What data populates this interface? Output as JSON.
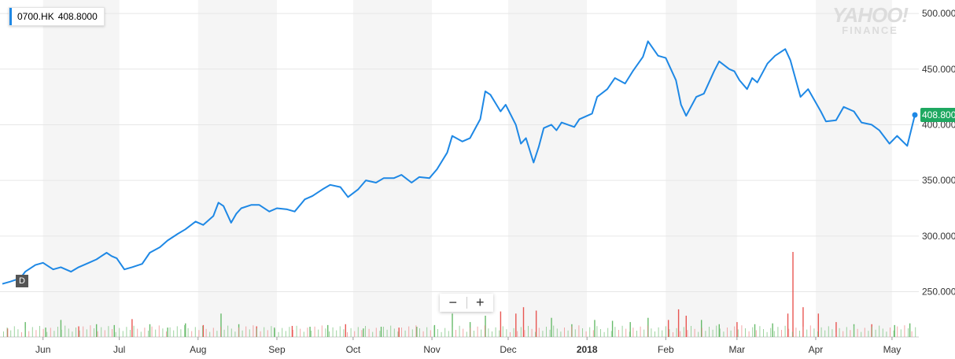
{
  "legend": {
    "symbol": "0700.HK",
    "value": "408.8000"
  },
  "period_badge": "D",
  "zoom": {
    "minus": "−",
    "plus": "+"
  },
  "watermark": {
    "line1": "YAHOO!",
    "line2": "FINANCE"
  },
  "colors": {
    "line": "#1e88e5",
    "up_volume": "#4caf50",
    "down_volume": "#e53935",
    "last_price_tag": "#1ea861"
  },
  "chart_data": {
    "type": "line",
    "title": "",
    "xlabel": "",
    "ylabel": "",
    "ylim": [
      215,
      505
    ],
    "yticks": [
      250,
      300,
      350,
      400,
      450,
      500
    ],
    "ytick_labels": [
      "250.000",
      "300.000",
      "350.000",
      "400.000",
      "450.000",
      "500.000"
    ],
    "last_price_label": "408.800",
    "x_range": [
      "2017-05-16",
      "2018-05-10"
    ],
    "xticks": [
      {
        "date": "2017-06-01",
        "label": "Jun",
        "bold": false
      },
      {
        "date": "2017-07-01",
        "label": "Jul",
        "bold": false
      },
      {
        "date": "2017-08-01",
        "label": "Aug",
        "bold": false
      },
      {
        "date": "2017-09-01",
        "label": "Sep",
        "bold": false
      },
      {
        "date": "2017-10-01",
        "label": "Oct",
        "bold": false
      },
      {
        "date": "2017-11-01",
        "label": "Nov",
        "bold": false
      },
      {
        "date": "2017-12-01",
        "label": "Dec",
        "bold": false
      },
      {
        "date": "2018-01-01",
        "label": "2018",
        "bold": true
      },
      {
        "date": "2018-02-01",
        "label": "Feb",
        "bold": false
      },
      {
        "date": "2018-03-01",
        "label": "Mar",
        "bold": false
      },
      {
        "date": "2018-04-01",
        "label": "Apr",
        "bold": false
      },
      {
        "date": "2018-05-01",
        "label": "May",
        "bold": false
      }
    ],
    "series": [
      {
        "points": [
          [
            "2017-05-16",
            257
          ],
          [
            "2017-05-19",
            259
          ],
          [
            "2017-05-23",
            262
          ],
          [
            "2017-05-25",
            268
          ],
          [
            "2017-05-29",
            274
          ],
          [
            "2017-06-01",
            276
          ],
          [
            "2017-06-05",
            270
          ],
          [
            "2017-06-08",
            272
          ],
          [
            "2017-06-12",
            268
          ],
          [
            "2017-06-15",
            272
          ],
          [
            "2017-06-19",
            276
          ],
          [
            "2017-06-22",
            279
          ],
          [
            "2017-06-26",
            285
          ],
          [
            "2017-06-28",
            282
          ],
          [
            "2017-06-30",
            280
          ],
          [
            "2017-07-03",
            270
          ],
          [
            "2017-07-06",
            272
          ],
          [
            "2017-07-10",
            275
          ],
          [
            "2017-07-13",
            285
          ],
          [
            "2017-07-17",
            290
          ],
          [
            "2017-07-20",
            296
          ],
          [
            "2017-07-24",
            302
          ],
          [
            "2017-07-27",
            306
          ],
          [
            "2017-07-31",
            313
          ],
          [
            "2017-08-03",
            310
          ],
          [
            "2017-08-07",
            318
          ],
          [
            "2017-08-09",
            330
          ],
          [
            "2017-08-11",
            327
          ],
          [
            "2017-08-14",
            312
          ],
          [
            "2017-08-16",
            320
          ],
          [
            "2017-08-18",
            325
          ],
          [
            "2017-08-22",
            328
          ],
          [
            "2017-08-25",
            328
          ],
          [
            "2017-08-29",
            322
          ],
          [
            "2017-09-01",
            325
          ],
          [
            "2017-09-05",
            324
          ],
          [
            "2017-09-08",
            322
          ],
          [
            "2017-09-12",
            333
          ],
          [
            "2017-09-15",
            336
          ],
          [
            "2017-09-19",
            342
          ],
          [
            "2017-09-22",
            346
          ],
          [
            "2017-09-26",
            344
          ],
          [
            "2017-09-29",
            335
          ],
          [
            "2017-10-03",
            342
          ],
          [
            "2017-10-06",
            350
          ],
          [
            "2017-10-10",
            348
          ],
          [
            "2017-10-13",
            352
          ],
          [
            "2017-10-17",
            352
          ],
          [
            "2017-10-20",
            355
          ],
          [
            "2017-10-24",
            348
          ],
          [
            "2017-10-27",
            353
          ],
          [
            "2017-10-31",
            352
          ],
          [
            "2017-11-03",
            360
          ],
          [
            "2017-11-07",
            375
          ],
          [
            "2017-11-09",
            390
          ],
          [
            "2017-11-13",
            385
          ],
          [
            "2017-11-16",
            388
          ],
          [
            "2017-11-20",
            405
          ],
          [
            "2017-11-22",
            430
          ],
          [
            "2017-11-24",
            427
          ],
          [
            "2017-11-28",
            412
          ],
          [
            "2017-11-30",
            418
          ],
          [
            "2017-12-04",
            400
          ],
          [
            "2017-12-06",
            383
          ],
          [
            "2017-12-08",
            388
          ],
          [
            "2017-12-11",
            366
          ],
          [
            "2017-12-13",
            380
          ],
          [
            "2017-12-15",
            397
          ],
          [
            "2017-12-18",
            400
          ],
          [
            "2017-12-20",
            395
          ],
          [
            "2017-12-22",
            402
          ],
          [
            "2017-12-27",
            398
          ],
          [
            "2017-12-29",
            405
          ],
          [
            "2018-01-03",
            410
          ],
          [
            "2018-01-05",
            425
          ],
          [
            "2018-01-09",
            432
          ],
          [
            "2018-01-12",
            442
          ],
          [
            "2018-01-16",
            437
          ],
          [
            "2018-01-19",
            448
          ],
          [
            "2018-01-23",
            461
          ],
          [
            "2018-01-25",
            475
          ],
          [
            "2018-01-29",
            462
          ],
          [
            "2018-02-01",
            460
          ],
          [
            "2018-02-05",
            440
          ],
          [
            "2018-02-07",
            418
          ],
          [
            "2018-02-09",
            408
          ],
          [
            "2018-02-13",
            425
          ],
          [
            "2018-02-16",
            428
          ],
          [
            "2018-02-20",
            448
          ],
          [
            "2018-02-22",
            457
          ],
          [
            "2018-02-26",
            450
          ],
          [
            "2018-02-28",
            448
          ],
          [
            "2018-03-02",
            440
          ],
          [
            "2018-03-05",
            432
          ],
          [
            "2018-03-07",
            442
          ],
          [
            "2018-03-09",
            438
          ],
          [
            "2018-03-13",
            455
          ],
          [
            "2018-03-16",
            462
          ],
          [
            "2018-03-20",
            468
          ],
          [
            "2018-03-22",
            458
          ],
          [
            "2018-03-26",
            425
          ],
          [
            "2018-03-29",
            432
          ],
          [
            "2018-04-03",
            412
          ],
          [
            "2018-04-05",
            403
          ],
          [
            "2018-04-09",
            404
          ],
          [
            "2018-04-12",
            416
          ],
          [
            "2018-04-16",
            412
          ],
          [
            "2018-04-19",
            402
          ],
          [
            "2018-04-23",
            400
          ],
          [
            "2018-04-26",
            395
          ],
          [
            "2018-04-30",
            383
          ],
          [
            "2018-05-03",
            390
          ],
          [
            "2018-05-07",
            381
          ],
          [
            "2018-05-10",
            408.8
          ]
        ]
      }
    ],
    "volume": {
      "baseline": "volume bars along bottom, green up days, red down days",
      "bars": [
        [
          "2017-05-18",
          0.2,
          "down"
        ],
        [
          "2017-05-25",
          0.35,
          "up"
        ],
        [
          "2017-06-02",
          0.22,
          "up"
        ],
        [
          "2017-06-08",
          0.4,
          "up"
        ],
        [
          "2017-06-15",
          0.25,
          "down"
        ],
        [
          "2017-06-22",
          0.3,
          "up"
        ],
        [
          "2017-06-29",
          0.28,
          "up"
        ],
        [
          "2017-07-06",
          0.42,
          "down"
        ],
        [
          "2017-07-13",
          0.3,
          "up"
        ],
        [
          "2017-07-20",
          0.22,
          "up"
        ],
        [
          "2017-07-27",
          0.32,
          "up"
        ],
        [
          "2017-08-03",
          0.28,
          "down"
        ],
        [
          "2017-08-10",
          0.55,
          "up"
        ],
        [
          "2017-08-17",
          0.3,
          "up"
        ],
        [
          "2017-08-24",
          0.25,
          "down"
        ],
        [
          "2017-08-31",
          0.22,
          "up"
        ],
        [
          "2017-09-07",
          0.26,
          "down"
        ],
        [
          "2017-09-14",
          0.24,
          "up"
        ],
        [
          "2017-09-21",
          0.28,
          "up"
        ],
        [
          "2017-09-28",
          0.3,
          "down"
        ],
        [
          "2017-10-05",
          0.2,
          "up"
        ],
        [
          "2017-10-12",
          0.24,
          "up"
        ],
        [
          "2017-10-19",
          0.22,
          "down"
        ],
        [
          "2017-10-26",
          0.24,
          "up"
        ],
        [
          "2017-11-02",
          0.28,
          "up"
        ],
        [
          "2017-11-09",
          0.55,
          "up"
        ],
        [
          "2017-11-16",
          0.35,
          "up"
        ],
        [
          "2017-11-22",
          0.5,
          "up"
        ],
        [
          "2017-11-28",
          0.6,
          "down"
        ],
        [
          "2017-12-04",
          0.55,
          "down"
        ],
        [
          "2017-12-07",
          0.7,
          "down"
        ],
        [
          "2017-12-12",
          0.62,
          "down"
        ],
        [
          "2017-12-18",
          0.45,
          "up"
        ],
        [
          "2017-12-26",
          0.3,
          "up"
        ],
        [
          "2018-01-04",
          0.4,
          "up"
        ],
        [
          "2018-01-11",
          0.38,
          "up"
        ],
        [
          "2018-01-18",
          0.35,
          "up"
        ],
        [
          "2018-01-25",
          0.45,
          "up"
        ],
        [
          "2018-02-02",
          0.4,
          "down"
        ],
        [
          "2018-02-06",
          0.65,
          "down"
        ],
        [
          "2018-02-09",
          0.5,
          "down"
        ],
        [
          "2018-02-15",
          0.4,
          "up"
        ],
        [
          "2018-02-22",
          0.3,
          "up"
        ],
        [
          "2018-03-01",
          0.35,
          "down"
        ],
        [
          "2018-03-08",
          0.3,
          "up"
        ],
        [
          "2018-03-15",
          0.32,
          "up"
        ],
        [
          "2018-03-21",
          0.55,
          "down"
        ],
        [
          "2018-03-23",
          2.0,
          "down"
        ],
        [
          "2018-03-27",
          0.7,
          "down"
        ],
        [
          "2018-04-02",
          0.55,
          "down"
        ],
        [
          "2018-04-09",
          0.35,
          "down"
        ],
        [
          "2018-04-16",
          0.3,
          "up"
        ],
        [
          "2018-04-23",
          0.3,
          "down"
        ],
        [
          "2018-05-02",
          0.28,
          "up"
        ],
        [
          "2018-05-08",
          0.32,
          "up"
        ]
      ]
    }
  }
}
